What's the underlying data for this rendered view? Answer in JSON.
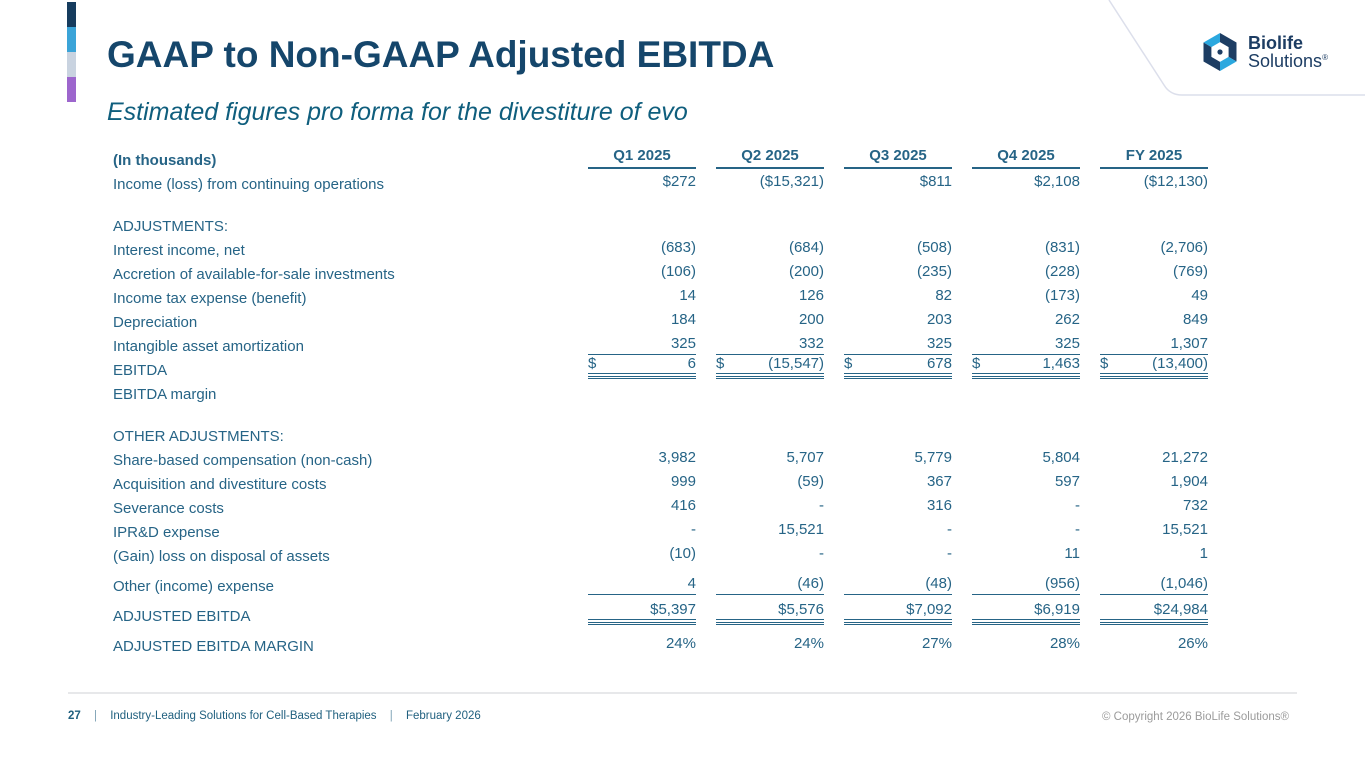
{
  "slide": {
    "title": "GAAP to Non-GAAP Adjusted EBITDA",
    "subtitle": "Estimated figures pro forma for the divestiture of evo"
  },
  "logo": {
    "line1": "Biolife",
    "line2": "Solutions",
    "registered": "®"
  },
  "table": {
    "unit_label": "(In thousands)",
    "columns": [
      "Q1 2025",
      "Q2 2025",
      "Q3 2025",
      "Q4 2025",
      "FY 2025"
    ],
    "rows": [
      {
        "label": "Income (loss) from continuing operations",
        "values": [
          "$272",
          "($15,321)",
          "$811",
          "$2,108",
          "($12,130)"
        ],
        "style": "data"
      },
      {
        "style": "spacer"
      },
      {
        "label": "ADJUSTMENTS:",
        "values": [
          "",
          "",
          "",
          "",
          ""
        ],
        "style": "section"
      },
      {
        "label": "Interest income, net",
        "values": [
          "(683)",
          "(684)",
          "(508)",
          "(831)",
          "(2,706)"
        ],
        "style": "data"
      },
      {
        "label": "Accretion of available-for-sale investments",
        "values": [
          "(106)",
          "(200)",
          "(235)",
          "(228)",
          "(769)"
        ],
        "style": "data"
      },
      {
        "label": "Income tax expense (benefit)",
        "values": [
          "14",
          "126",
          "82",
          "(173)",
          "49"
        ],
        "style": "data"
      },
      {
        "label": "Depreciation",
        "values": [
          "184",
          "200",
          "203",
          "262",
          "849"
        ],
        "style": "data"
      },
      {
        "label": "Intangible asset amortization",
        "values": [
          "325",
          "332",
          "325",
          "325",
          "1,307"
        ],
        "style": "data rule-under"
      },
      {
        "label": "EBITDA",
        "dollar": "$",
        "values": [
          "6",
          "(15,547)",
          "678",
          "1,463",
          "(13,400)"
        ],
        "style": "total split"
      },
      {
        "label": "EBITDA margin",
        "values": [
          "",
          "",
          "",
          "",
          ""
        ],
        "style": "data"
      },
      {
        "style": "spacer"
      },
      {
        "label": "OTHER ADJUSTMENTS:",
        "values": [
          "",
          "",
          "",
          "",
          ""
        ],
        "style": "section"
      },
      {
        "label": "Share-based compensation (non-cash)",
        "values": [
          "3,982",
          "5,707",
          "5,779",
          "5,804",
          "21,272"
        ],
        "style": "data"
      },
      {
        "label": "Acquisition and divestiture costs",
        "values": [
          "999",
          "(59)",
          "367",
          "597",
          "1,904"
        ],
        "style": "data"
      },
      {
        "label": "Severance costs",
        "values": [
          "416",
          "-",
          "316",
          "-",
          "732"
        ],
        "style": "data"
      },
      {
        "label": "IPR&D expense",
        "values": [
          "-",
          "15,521",
          "-",
          "-",
          "15,521"
        ],
        "style": "data"
      },
      {
        "label": "(Gain) loss on disposal of assets",
        "values": [
          "(10)",
          "-",
          "-",
          "11",
          "1"
        ],
        "style": "data"
      },
      {
        "label": "Other (income) expense",
        "values": [
          "4",
          "(46)",
          "(48)",
          "(956)",
          "(1,046)"
        ],
        "style": "data rule-under tall"
      },
      {
        "label": "ADJUSTED EBITDA",
        "values": [
          "$5,397",
          "$5,576",
          "$7,092",
          "$6,919",
          "$24,984"
        ],
        "style": "total tall"
      },
      {
        "label": "ADJUSTED EBITDA MARGIN",
        "values": [
          "24%",
          "24%",
          "27%",
          "28%",
          "26%"
        ],
        "style": "data tall"
      }
    ]
  },
  "footer": {
    "page_number": "27",
    "separator": "|",
    "tagline": "Industry-Leading Solutions for Cell-Based Therapies",
    "date": "February 2026",
    "copyright": "© Copyright 2026 BioLife Solutions®"
  },
  "colors": {
    "title_navy": "#15466b",
    "subtitle_teal": "#0f5e7d",
    "table_text": "#266486",
    "accent_bar": [
      "#163c5e",
      "#3ba4d8",
      "#c9d3e0",
      "#9d66cd"
    ],
    "logo_navy": "#1d3d63",
    "logo_blue": "#2ba8df",
    "copyright_gray": "#9b9b9b"
  }
}
